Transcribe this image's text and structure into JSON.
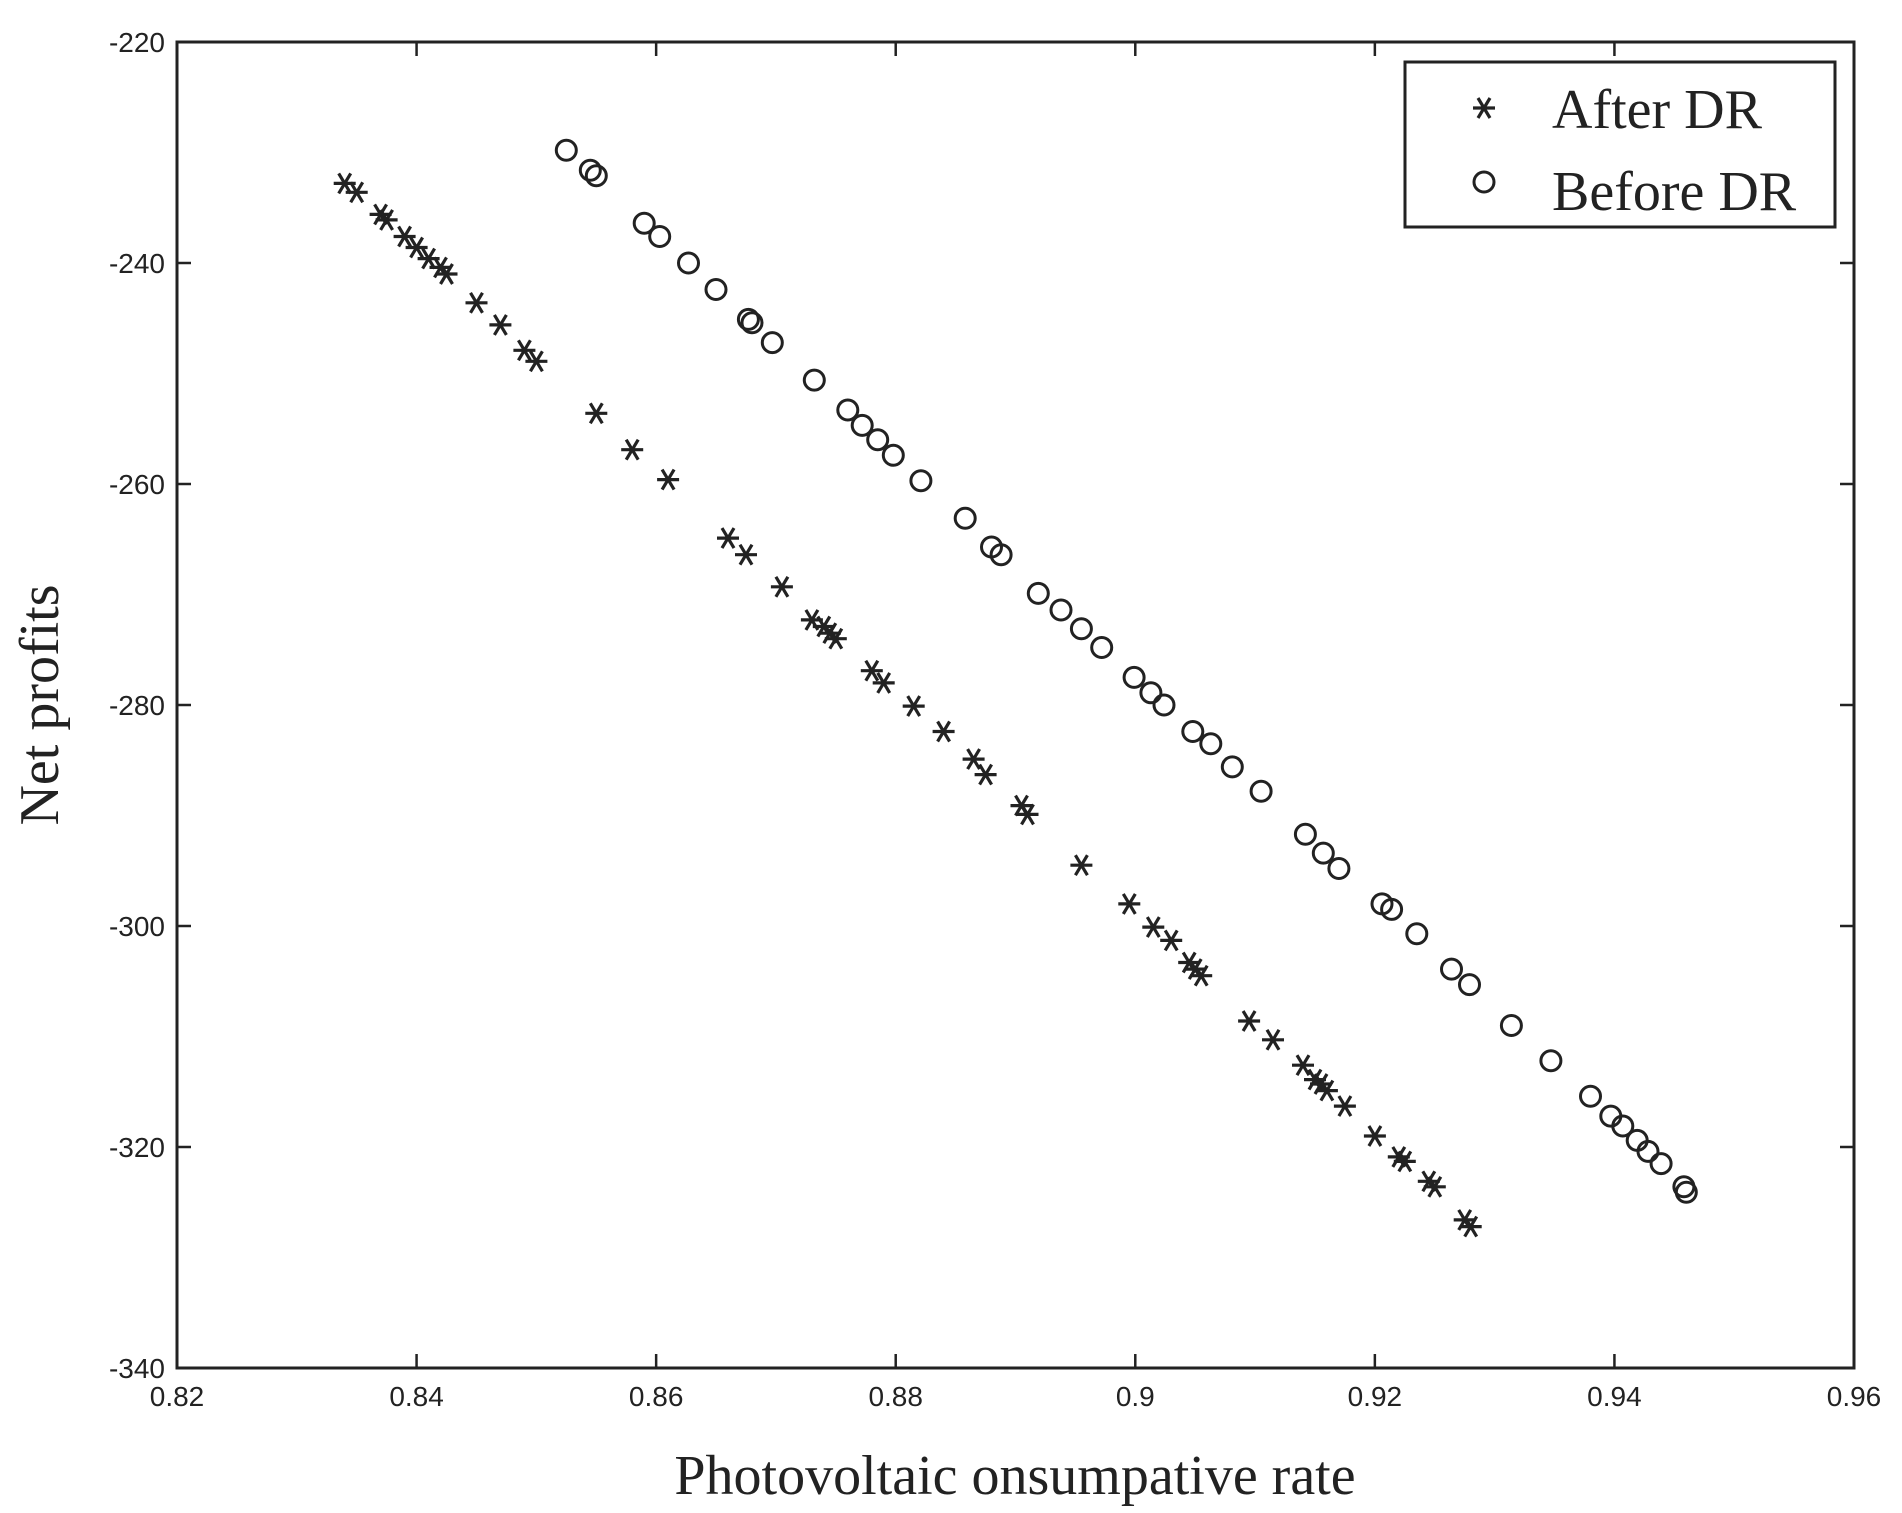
{
  "chart_data": {
    "type": "scatter",
    "title": "",
    "xlabel": "Photovoltaic onsumpative rate",
    "ylabel": "Net profits",
    "xlim": [
      0.82,
      0.96
    ],
    "ylim": [
      -340,
      -220
    ],
    "xticks": [
      0.82,
      0.84,
      0.86,
      0.88,
      0.9,
      0.92,
      0.94,
      0.96
    ],
    "xtick_labels": [
      "0.82",
      "0.84",
      "0.86",
      "0.88",
      "0.9",
      "0.92",
      "0.94",
      "0.96"
    ],
    "yticks": [
      -220,
      -240,
      -260,
      -280,
      -300,
      -320,
      -340
    ],
    "ytick_labels": [
      "-220",
      "-240",
      "-260",
      "-280",
      "-300",
      "-320",
      "-340"
    ],
    "grid": false,
    "legend_position": "top-right",
    "series": [
      {
        "name": "After DR",
        "marker": "asterisk",
        "color": "#222222",
        "x": [
          0.834,
          0.835,
          0.837,
          0.8375,
          0.839,
          0.84,
          0.841,
          0.842,
          0.8425,
          0.845,
          0.847,
          0.849,
          0.85,
          0.855,
          0.858,
          0.861,
          0.866,
          0.8675,
          0.8705,
          0.873,
          0.874,
          0.8745,
          0.875,
          0.878,
          0.879,
          0.8815,
          0.884,
          0.8865,
          0.8875,
          0.8905,
          0.891,
          0.8955,
          0.8995,
          0.9015,
          0.903,
          0.9045,
          0.905,
          0.9055,
          0.9095,
          0.9115,
          0.914,
          0.915,
          0.9155,
          0.916,
          0.9175,
          0.92,
          0.922,
          0.9225,
          0.9245,
          0.925,
          0.9275,
          0.928
        ],
        "y": [
          -232.8,
          -233.6,
          -235.6,
          -236.1,
          -237.6,
          -238.6,
          -239.6,
          -240.4,
          -241.0,
          -243.6,
          -245.6,
          -247.9,
          -248.9,
          -253.6,
          -256.9,
          -259.6,
          -264.9,
          -266.4,
          -269.3,
          -272.3,
          -272.9,
          -273.5,
          -274.0,
          -276.9,
          -278.0,
          -280.1,
          -282.4,
          -284.9,
          -286.3,
          -289.1,
          -289.9,
          -294.5,
          -298.0,
          -300.1,
          -301.3,
          -303.3,
          -303.9,
          -304.5,
          -308.6,
          -310.3,
          -312.6,
          -313.9,
          -314.3,
          -314.9,
          -316.3,
          -319.0,
          -320.9,
          -321.3,
          -323.1,
          -323.6,
          -326.6,
          -327.2
        ]
      },
      {
        "name": "Before DR",
        "marker": "circle",
        "color": "#222222",
        "x": [
          0.8525,
          0.8545,
          0.855,
          0.859,
          0.8603,
          0.8627,
          0.865,
          0.8677,
          0.868,
          0.8697,
          0.8732,
          0.876,
          0.8772,
          0.8785,
          0.8798,
          0.8821,
          0.8858,
          0.888,
          0.8888,
          0.8919,
          0.8938,
          0.8955,
          0.8972,
          0.8999,
          0.9013,
          0.9024,
          0.9048,
          0.9063,
          0.9081,
          0.9105,
          0.9142,
          0.9157,
          0.917,
          0.9206,
          0.9214,
          0.9235,
          0.9264,
          0.9279,
          0.9314,
          0.9347,
          0.938,
          0.9397,
          0.9407,
          0.9419,
          0.9428,
          0.9439,
          0.9458,
          0.946
        ],
        "y": [
          -229.8,
          -231.6,
          -232.1,
          -236.4,
          -237.6,
          -240.0,
          -242.4,
          -245.1,
          -245.4,
          -247.2,
          -250.6,
          -253.3,
          -254.7,
          -256.0,
          -257.4,
          -259.7,
          -263.1,
          -265.7,
          -266.4,
          -269.9,
          -271.4,
          -273.1,
          -274.8,
          -277.5,
          -278.9,
          -280.0,
          -282.4,
          -283.5,
          -285.6,
          -287.8,
          -291.7,
          -293.4,
          -294.8,
          -298.0,
          -298.5,
          -300.7,
          -303.9,
          -305.3,
          -309.0,
          -312.2,
          -315.4,
          -317.2,
          -318.1,
          -319.4,
          -320.4,
          -321.5,
          -323.6,
          -324.1
        ]
      }
    ]
  }
}
